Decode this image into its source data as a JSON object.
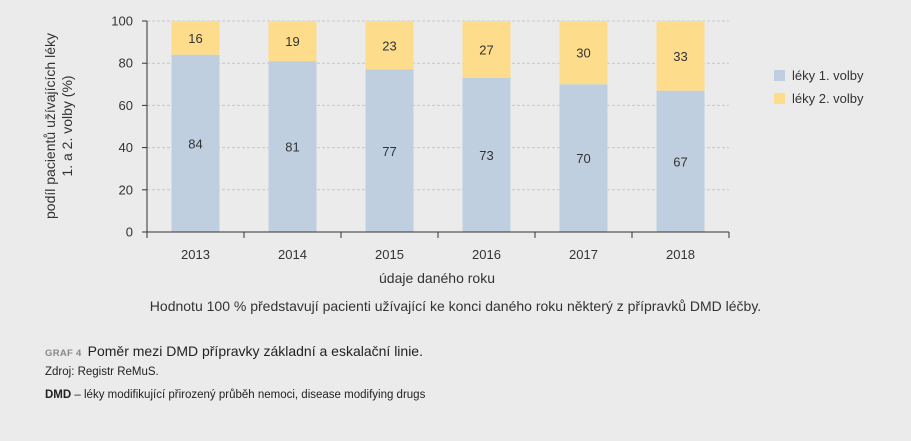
{
  "chart_data": {
    "type": "bar",
    "stacked": true,
    "categories": [
      "2013",
      "2014",
      "2015",
      "2016",
      "2017",
      "2018"
    ],
    "series": [
      {
        "name": "léky 1. volby",
        "values": [
          84,
          81,
          77,
          73,
          70,
          67
        ],
        "color": "#bfcfdf"
      },
      {
        "name": "léky 2. volby",
        "values": [
          16,
          19,
          23,
          27,
          30,
          33
        ],
        "color": "#fddd8c"
      }
    ],
    "xlabel": "údaje daného roku",
    "ylabel_line1": "podíl pacientů užívajících léky",
    "ylabel_line2": "1. a 2. volby (%)",
    "ylim": [
      0,
      100
    ],
    "yticks": [
      "0",
      "20",
      "40",
      "60",
      "80",
      "100"
    ],
    "grid": true,
    "legend_position": "right"
  },
  "note": "Hodnotu 100 % představují pacienti užívající ke konci daného roku některý z přípravků DMD léčby.",
  "caption": {
    "label": "GRAF 4",
    "title": "Poměr mezi DMD přípravky základní a eskalační linie."
  },
  "source": "Zdroj: Registr ReMuS.",
  "abbreviation": {
    "key": "DMD",
    "text": " – léky modifikující přirozený průběh nemoci, disease modifying drugs"
  },
  "colors": {
    "background": "#ebebeb",
    "axis": "#333333",
    "grid": "#c8c8c8"
  }
}
